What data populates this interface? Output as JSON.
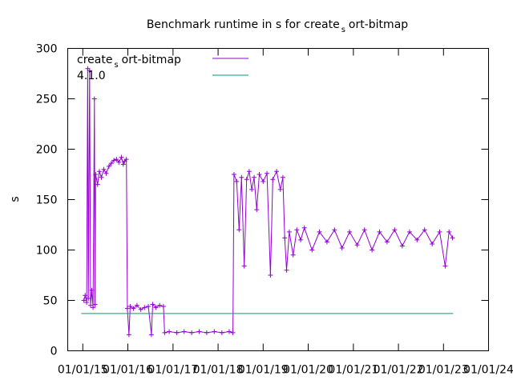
{
  "chart_data": {
    "type": "line",
    "title_main": "Benchmark runtime in s for create",
    "title_sub": "s",
    "title_rest": "ort-bitmap",
    "ylabel": "s",
    "xlabel": "",
    "ylim": [
      0,
      300
    ],
    "xlim": [
      "2014-09-01",
      "2024-01-01"
    ],
    "y_ticks": [
      "0",
      "50",
      "100",
      "150",
      "200",
      "250",
      "300"
    ],
    "x_ticks": [
      "01/01/15",
      "01/01/16",
      "01/01/17",
      "01/01/18",
      "01/01/19",
      "01/01/20",
      "01/01/21",
      "01/01/22",
      "01/01/23",
      "01/01/24"
    ],
    "legend_position": "top-left",
    "grid": false,
    "series": [
      {
        "name_main": "create",
        "name_sub": "s",
        "name_rest": "ort-bitmap",
        "color": "#9400d3",
        "marker": "plus",
        "points": [
          [
            "2015-01-10",
            50
          ],
          [
            "2015-01-20",
            55
          ],
          [
            "2015-02-01",
            48
          ],
          [
            "2015-02-10",
            280
          ],
          [
            "2015-02-15",
            52
          ],
          [
            "2015-02-25",
            278
          ],
          [
            "2015-03-05",
            45
          ],
          [
            "2015-03-15",
            60
          ],
          [
            "2015-03-25",
            43
          ],
          [
            "2015-04-05",
            250
          ],
          [
            "2015-04-10",
            46
          ],
          [
            "2015-04-15",
            175
          ],
          [
            "2015-05-01",
            165
          ],
          [
            "2015-05-15",
            178
          ],
          [
            "2015-06-01",
            172
          ],
          [
            "2015-06-20",
            180
          ],
          [
            "2015-07-10",
            176
          ],
          [
            "2015-08-01",
            183
          ],
          [
            "2015-08-20",
            186
          ],
          [
            "2015-09-10",
            189
          ],
          [
            "2015-10-01",
            190
          ],
          [
            "2015-10-20",
            187
          ],
          [
            "2015-11-10",
            192
          ],
          [
            "2015-11-25",
            185
          ],
          [
            "2015-12-05",
            188
          ],
          [
            "2015-12-20",
            190
          ],
          [
            "2015-12-28",
            42
          ],
          [
            "2016-01-10",
            16
          ],
          [
            "2016-01-20",
            44
          ],
          [
            "2016-02-15",
            42
          ],
          [
            "2016-03-15",
            45
          ],
          [
            "2016-04-15",
            41
          ],
          [
            "2016-05-15",
            43
          ],
          [
            "2016-06-15",
            44
          ],
          [
            "2016-07-10",
            16
          ],
          [
            "2016-07-20",
            46
          ],
          [
            "2016-08-15",
            43
          ],
          [
            "2016-09-15",
            45
          ],
          [
            "2016-10-15",
            44
          ],
          [
            "2016-10-25",
            18
          ],
          [
            "2016-12-01",
            19
          ],
          [
            "2017-02-01",
            18
          ],
          [
            "2017-04-01",
            19
          ],
          [
            "2017-06-01",
            18
          ],
          [
            "2017-08-01",
            19
          ],
          [
            "2017-10-01",
            18
          ],
          [
            "2017-12-01",
            19
          ],
          [
            "2018-02-01",
            18
          ],
          [
            "2018-04-01",
            19
          ],
          [
            "2018-05-01",
            18
          ],
          [
            "2018-05-10",
            175
          ],
          [
            "2018-06-01",
            168
          ],
          [
            "2018-06-20",
            120
          ],
          [
            "2018-07-10",
            172
          ],
          [
            "2018-08-01",
            84
          ],
          [
            "2018-08-20",
            170
          ],
          [
            "2018-09-10",
            178
          ],
          [
            "2018-10-01",
            160
          ],
          [
            "2018-10-20",
            172
          ],
          [
            "2018-11-10",
            140
          ],
          [
            "2018-12-01",
            175
          ],
          [
            "2019-01-01",
            168
          ],
          [
            "2019-02-01",
            176
          ],
          [
            "2019-03-01",
            75
          ],
          [
            "2019-03-20",
            170
          ],
          [
            "2019-04-20",
            178
          ],
          [
            "2019-05-20",
            160
          ],
          [
            "2019-06-10",
            172
          ],
          [
            "2019-06-25",
            112
          ],
          [
            "2019-07-10",
            80
          ],
          [
            "2019-08-01",
            118
          ],
          [
            "2019-09-01",
            95
          ],
          [
            "2019-10-01",
            120
          ],
          [
            "2019-11-01",
            110
          ],
          [
            "2019-12-01",
            122
          ],
          [
            "2020-02-01",
            100
          ],
          [
            "2020-04-01",
            118
          ],
          [
            "2020-06-01",
            108
          ],
          [
            "2020-08-01",
            120
          ],
          [
            "2020-10-01",
            102
          ],
          [
            "2020-12-01",
            118
          ],
          [
            "2021-02-01",
            105
          ],
          [
            "2021-04-01",
            120
          ],
          [
            "2021-06-01",
            100
          ],
          [
            "2021-08-01",
            118
          ],
          [
            "2021-10-01",
            108
          ],
          [
            "2021-12-01",
            120
          ],
          [
            "2022-02-01",
            104
          ],
          [
            "2022-04-01",
            118
          ],
          [
            "2022-06-01",
            110
          ],
          [
            "2022-08-01",
            120
          ],
          [
            "2022-10-01",
            106
          ],
          [
            "2022-12-01",
            118
          ],
          [
            "2023-01-15",
            84
          ],
          [
            "2023-02-15",
            118
          ],
          [
            "2023-03-15",
            112
          ]
        ]
      },
      {
        "name": "4.1.0",
        "color": "#009e73",
        "marker": "none",
        "points": [
          [
            "2014-12-20",
            37
          ],
          [
            "2023-03-20",
            37
          ]
        ]
      }
    ]
  }
}
